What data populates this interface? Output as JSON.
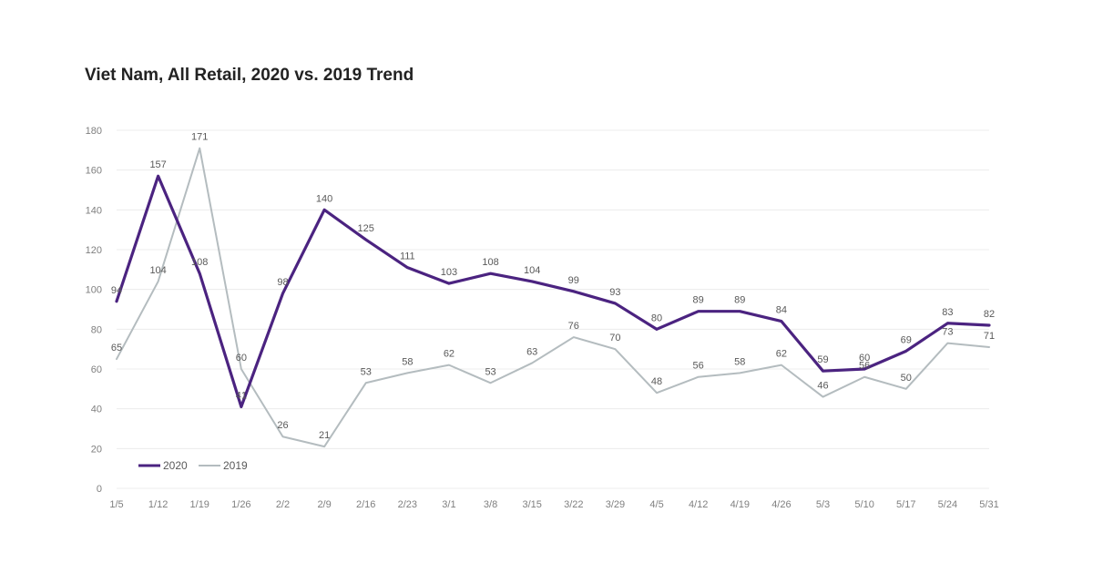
{
  "chart_data": {
    "type": "line",
    "title": "Viet Nam, All Retail, 2020 vs. 2019 Trend",
    "xlabel": "",
    "ylabel": "",
    "ylim": [
      0,
      180
    ],
    "yticks": [
      "0",
      "20",
      "40",
      "60",
      "80",
      "100",
      "120",
      "140",
      "160",
      "180"
    ],
    "grid": true,
    "legend_position": "bottom-left",
    "categories": [
      "1/5",
      "1/12",
      "1/19",
      "1/26",
      "2/2",
      "2/9",
      "2/16",
      "2/23",
      "3/1",
      "3/8",
      "3/15",
      "3/22",
      "3/29",
      "4/5",
      "4/12",
      "4/19",
      "4/26",
      "5/3",
      "5/10",
      "5/17",
      "5/24",
      "5/31"
    ],
    "series": [
      {
        "name": "2020",
        "color": "#4b2380",
        "values": [
          94,
          157,
          108,
          41,
          98,
          140,
          125,
          111,
          103,
          108,
          104,
          99,
          93,
          80,
          89,
          89,
          84,
          59,
          60,
          69,
          83,
          82
        ],
        "labels": [
          "94",
          "157",
          "108",
          "41",
          "98",
          "140",
          "125",
          "111",
          "103",
          "108",
          "104",
          "99",
          "93",
          "80",
          "89",
          "89",
          "84",
          "59",
          "60",
          "69",
          "83",
          "82"
        ]
      },
      {
        "name": "2019",
        "color": "#b4bcbf",
        "values": [
          65,
          104,
          171,
          60,
          26,
          21,
          53,
          58,
          62,
          53,
          63,
          76,
          70,
          48,
          56,
          58,
          62,
          46,
          56,
          50,
          73,
          71
        ],
        "labels": [
          "65",
          "104",
          "171",
          "60",
          "26",
          "21",
          "53",
          "58",
          "62",
          "53",
          "63",
          "76",
          "70",
          "48",
          "56",
          "58",
          "62",
          "46",
          "56",
          "50",
          "73",
          "71"
        ]
      }
    ]
  }
}
